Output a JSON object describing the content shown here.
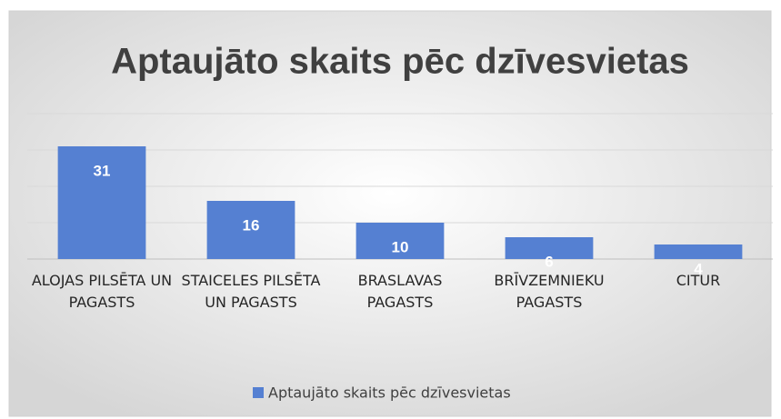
{
  "chart_data": {
    "type": "bar",
    "title": "Aptaujāto skaits pēc dzīvesvietas",
    "categories": [
      "ALOJAS PILSĒTA UN PAGASTS",
      "STAICELES PILSĒTA UN PAGASTS",
      "BRASLAVAS PAGASTS",
      "BRĪVZEMNIEKU PAGASTS",
      "CITUR"
    ],
    "series": [
      {
        "name": "Aptaujāto skaits pēc dzīvesvietas",
        "color": "#5580d2",
        "values": [
          31,
          16,
          10,
          6,
          4
        ]
      }
    ],
    "ylim": [
      0,
      40
    ],
    "yticks": [
      0,
      10,
      20,
      30,
      40
    ],
    "grid": true,
    "legend": "bottom"
  }
}
